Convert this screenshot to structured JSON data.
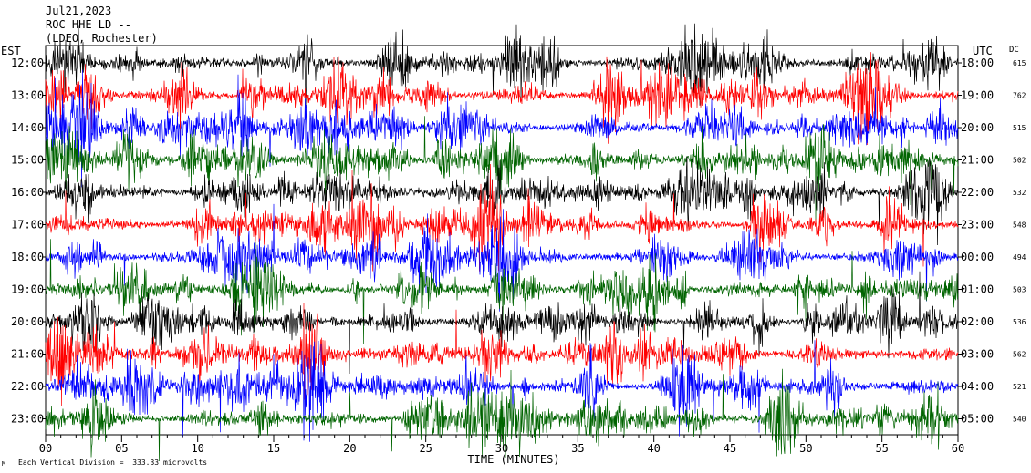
{
  "header": {
    "date": "Jul21,2023",
    "station": "ROC HHE LD --",
    "network": "(LDEO, Rochester)"
  },
  "left_zone_label": "EST",
  "right_zone_label": "UTC",
  "dc_header": "DC",
  "footer": {
    "scale_note": "Each Vertical Division =  333.33 microvolts",
    "corner_mark": "M"
  },
  "chart_data": {
    "type": "line",
    "title": "",
    "xlabel": "TIME (MINUTES)",
    "ylabel": "",
    "xlim": [
      0,
      60
    ],
    "x_ticks": [
      "00",
      "05",
      "10",
      "15",
      "20",
      "25",
      "30",
      "35",
      "40",
      "45",
      "50",
      "55",
      "60"
    ],
    "colors": [
      "#000000",
      "#ff0000",
      "#0000ff",
      "#006400"
    ],
    "rows": [
      {
        "est": "12:00",
        "utc": "18:00",
        "dc": "615",
        "color": "#000000"
      },
      {
        "est": "13:00",
        "utc": "19:00",
        "dc": "762",
        "color": "#ff0000"
      },
      {
        "est": "14:00",
        "utc": "20:00",
        "dc": "515",
        "color": "#0000ff"
      },
      {
        "est": "15:00",
        "utc": "21:00",
        "dc": "502",
        "color": "#006400"
      },
      {
        "est": "16:00",
        "utc": "22:00",
        "dc": "532",
        "color": "#000000"
      },
      {
        "est": "17:00",
        "utc": "23:00",
        "dc": "548",
        "color": "#ff0000"
      },
      {
        "est": "18:00",
        "utc": "00:00",
        "dc": "494",
        "color": "#0000ff"
      },
      {
        "est": "19:00",
        "utc": "01:00",
        "dc": "503",
        "color": "#006400"
      },
      {
        "est": "20:00",
        "utc": "02:00",
        "dc": "536",
        "color": "#000000"
      },
      {
        "est": "21:00",
        "utc": "03:00",
        "dc": "562",
        "color": "#ff0000"
      },
      {
        "est": "22:00",
        "utc": "04:00",
        "dc": "521",
        "color": "#0000ff"
      },
      {
        "est": "23:00",
        "utc": "05:00",
        "dc": "540",
        "color": "#006400"
      }
    ],
    "grid": false,
    "legend": "none"
  }
}
